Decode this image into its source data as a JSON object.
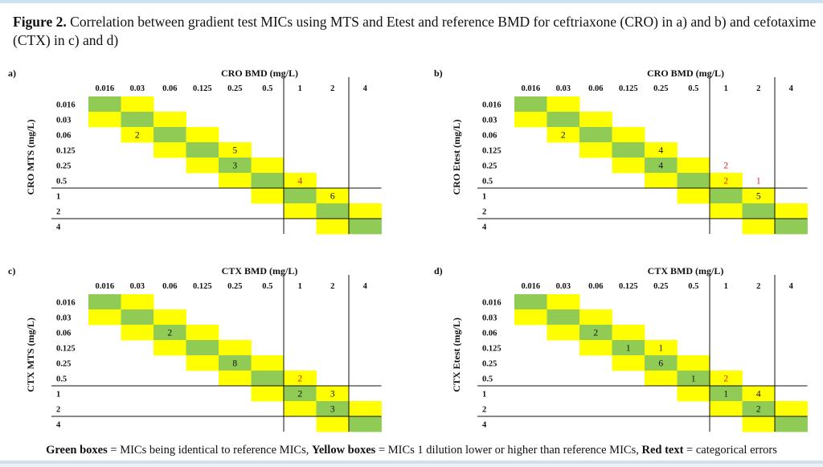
{
  "caption": {
    "label": "Figure 2.",
    "text": " Correlation between gradient test MICs using MTS and Etest and reference BMD for ceftriaxone (CRO) in a) and b) and cefotaxime (CTX) in c) and d)"
  },
  "legend": {
    "green_label": "Green boxes",
    "green_text": " = MICs being identical to reference MICs, ",
    "yellow_label": "Yellow boxes",
    "yellow_text": " = MICs 1 dilution lower or higher than reference MICs, ",
    "red_label": "Red text",
    "red_text": " = categorical errors"
  },
  "colors": {
    "green": "#8fcb55",
    "yellow": "#ffff00",
    "red_text": "#e31b1b",
    "black_text": "#111111"
  },
  "chart_data": [
    {
      "type": "table",
      "panel": "a)",
      "title": "CRO BMD (mg/L)",
      "ylabel": "CRO MTS (mg/L)",
      "columns": [
        "0.016",
        "0.03",
        "0.06",
        "0.125",
        "0.25",
        "0.5",
        "1",
        "2",
        "4"
      ],
      "rows": [
        "0.016",
        "0.03",
        "0.06",
        "0.125",
        "0.25",
        "0.5",
        "1",
        "2",
        "4"
      ],
      "counts": [
        {
          "row": "0.06",
          "col": "0.03",
          "value": 2,
          "red": false
        },
        {
          "row": "0.125",
          "col": "0.25",
          "value": 5,
          "red": false
        },
        {
          "row": "0.25",
          "col": "0.25",
          "value": 3,
          "red": false
        },
        {
          "row": "0.5",
          "col": "1",
          "value": 4,
          "red": true
        },
        {
          "row": "1",
          "col": "2",
          "value": 6,
          "red": false
        }
      ]
    },
    {
      "type": "table",
      "panel": "b)",
      "title": "CRO BMD (mg/L)",
      "ylabel": "CRO Etest (mg/L)",
      "columns": [
        "0.016",
        "0.03",
        "0.06",
        "0.125",
        "0.25",
        "0.5",
        "1",
        "2",
        "4"
      ],
      "rows": [
        "0.016",
        "0.03",
        "0.06",
        "0.125",
        "0.25",
        "0.5",
        "1",
        "2",
        "4"
      ],
      "counts": [
        {
          "row": "0.06",
          "col": "0.03",
          "value": 2,
          "red": false
        },
        {
          "row": "0.125",
          "col": "0.25",
          "value": 4,
          "red": false
        },
        {
          "row": "0.25",
          "col": "0.25",
          "value": 4,
          "red": false
        },
        {
          "row": "0.25",
          "col": "1",
          "value": 2,
          "red": true
        },
        {
          "row": "0.5",
          "col": "1",
          "value": 2,
          "red": true
        },
        {
          "row": "0.5",
          "col": "2",
          "value": 1,
          "red": true
        },
        {
          "row": "1",
          "col": "2",
          "value": 5,
          "red": false
        }
      ]
    },
    {
      "type": "table",
      "panel": "c)",
      "title": "CTX BMD (mg/L)",
      "ylabel": "CTX MTS (mg/L)",
      "columns": [
        "0.016",
        "0.03",
        "0.06",
        "0.125",
        "0.25",
        "0.5",
        "1",
        "2",
        "4"
      ],
      "rows": [
        "0.016",
        "0.03",
        "0.06",
        "0.125",
        "0.25",
        "0.5",
        "1",
        "2",
        "4"
      ],
      "counts": [
        {
          "row": "0.06",
          "col": "0.06",
          "value": 2,
          "red": false
        },
        {
          "row": "0.25",
          "col": "0.25",
          "value": 8,
          "red": false
        },
        {
          "row": "0.5",
          "col": "1",
          "value": 2,
          "red": true
        },
        {
          "row": "1",
          "col": "1",
          "value": 2,
          "red": false
        },
        {
          "row": "1",
          "col": "2",
          "value": 3,
          "red": false
        },
        {
          "row": "2",
          "col": "2",
          "value": 3,
          "red": false
        }
      ]
    },
    {
      "type": "table",
      "panel": "d)",
      "title": "CTX BMD (mg/L)",
      "ylabel": "CTX Etest (mg/L)",
      "columns": [
        "0.016",
        "0.03",
        "0.06",
        "0.125",
        "0.25",
        "0.5",
        "1",
        "2",
        "4"
      ],
      "rows": [
        "0.016",
        "0.03",
        "0.06",
        "0.125",
        "0.25",
        "0.5",
        "1",
        "2",
        "4"
      ],
      "counts": [
        {
          "row": "0.06",
          "col": "0.06",
          "value": 2,
          "red": false
        },
        {
          "row": "0.125",
          "col": "0.125",
          "value": 1,
          "red": false
        },
        {
          "row": "0.125",
          "col": "0.25",
          "value": 1,
          "red": false
        },
        {
          "row": "0.25",
          "col": "0.25",
          "value": 6,
          "red": false
        },
        {
          "row": "0.5",
          "col": "0.5",
          "value": 1,
          "red": false
        },
        {
          "row": "0.5",
          "col": "1",
          "value": 2,
          "red": true
        },
        {
          "row": "1",
          "col": "1",
          "value": 1,
          "red": false
        },
        {
          "row": "1",
          "col": "2",
          "value": 4,
          "red": false
        },
        {
          "row": "2",
          "col": "2",
          "value": 2,
          "red": false
        }
      ]
    }
  ]
}
